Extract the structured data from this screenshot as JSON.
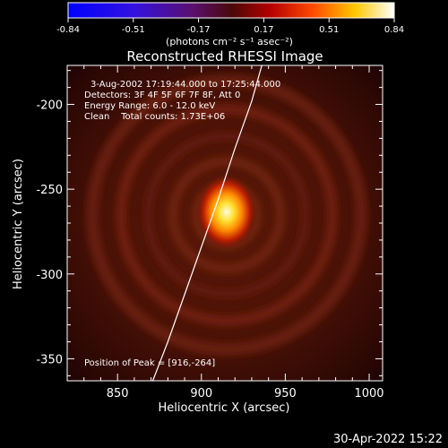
{
  "colorbar": {
    "min": -0.84,
    "max": 0.84,
    "tick_labels": [
      "-0.84",
      "-0.51",
      "-0.17",
      "0.17",
      "0.51",
      "0.84"
    ],
    "unit_label": "(photons cm⁻² s⁻¹ asec⁻²)",
    "colormap": "blue-purple-red-yellow-white"
  },
  "chart_data": {
    "type": "heatmap",
    "title": "Reconstructed RHESSI Image",
    "xlabel": "Heliocentric X (arcsec)",
    "ylabel": "Heliocentric Y (arcsec)",
    "xlim": [
      820,
      1008
    ],
    "ylim": [
      -363,
      -177
    ],
    "xticks": [
      850,
      900,
      950,
      1000
    ],
    "yticks": [
      -200,
      -250,
      -300,
      -350
    ],
    "peak": {
      "x": 916,
      "y": -264
    },
    "limb_curve": [
      [
        871,
        -363
      ],
      [
        880,
        -340
      ],
      [
        890,
        -312
      ],
      [
        900,
        -284
      ],
      [
        910,
        -256
      ],
      [
        920,
        -226
      ],
      [
        930,
        -198
      ],
      [
        936,
        -177
      ]
    ],
    "annotations": [
      "3-Aug-2002 17:19:44.000 to 17:25:44.000",
      "Detectors: 3F 4F 5F 6F 7F 8F, Att 0",
      "Energy Range: 6.0 - 12.0 keV",
      "Clean    Total counts: 1.73E+06"
    ],
    "peak_label": "Position of Peak = [916,-264]"
  },
  "timestamp": "30-Apr-2022 15:22"
}
